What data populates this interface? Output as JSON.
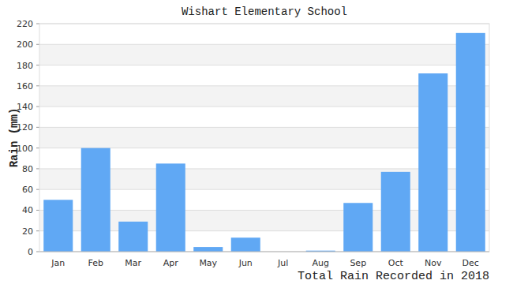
{
  "chart_data": {
    "type": "bar",
    "title": "Wishart Elementary School",
    "y_label": "Rain (mm)",
    "x_label": "Total Rain Recorded in 2018",
    "categories": [
      "Jan",
      "Feb",
      "Mar",
      "Apr",
      "May",
      "Jun",
      "Jul",
      "Aug",
      "Sep",
      "Oct",
      "Nov",
      "Dec"
    ],
    "values": [
      50,
      100,
      29,
      85,
      4.5,
      13.5,
      0,
      1,
      47,
      77,
      172,
      211
    ],
    "color": "#60a8f4",
    "ylim": [
      0,
      220
    ],
    "yticks": [
      0,
      20,
      40,
      60,
      80,
      100,
      120,
      140,
      160,
      180,
      200,
      220
    ],
    "grid": true
  }
}
